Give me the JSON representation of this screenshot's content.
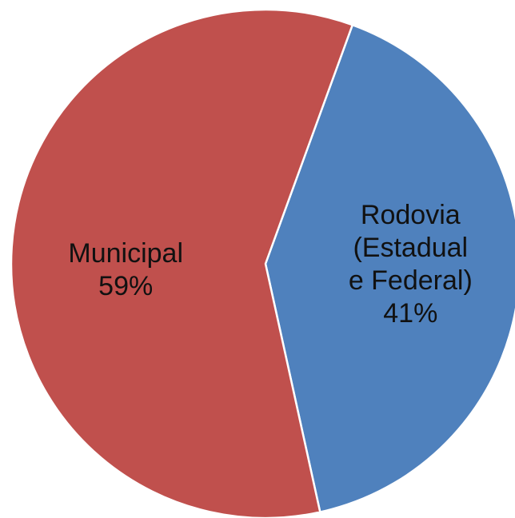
{
  "chart_data": {
    "type": "pie",
    "slices": [
      {
        "label_lines": [
          "Rodovia",
          "(Estadual",
          "e Federal)"
        ],
        "value": 41,
        "value_label": "41%",
        "color": "#4f81bd"
      },
      {
        "label_lines": [
          "Municipal"
        ],
        "value": 59,
        "value_label": "59%",
        "color": "#c0504d"
      }
    ]
  }
}
